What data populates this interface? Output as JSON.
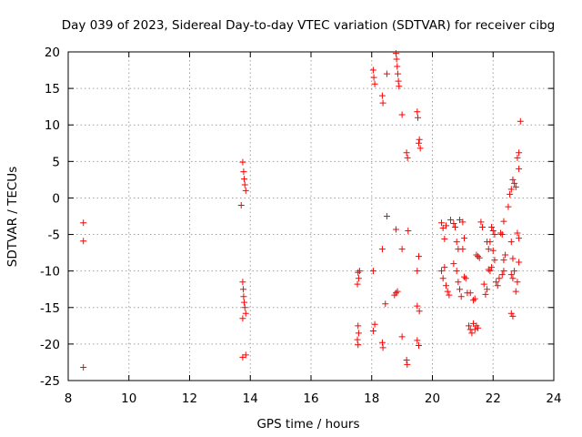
{
  "chart_data": {
    "type": "scatter",
    "title": "Day 039 of 2023, Sidereal Day-to-day VTEC variation (SDTVAR) for receiver cibg",
    "xlabel": "GPS time / hours",
    "ylabel": "SDTVAR / TECUs",
    "xlim": [
      8,
      24
    ],
    "ylim": [
      -25,
      20
    ],
    "xticks": [
      8,
      10,
      12,
      14,
      16,
      18,
      20,
      22,
      24
    ],
    "yticks": [
      -25,
      -20,
      -15,
      -10,
      -5,
      0,
      5,
      10,
      15,
      20
    ],
    "grid": true,
    "marker": "+",
    "color": "#ff0000",
    "series": [
      {
        "name": "SDTVAR",
        "points": [
          [
            8.5,
            -3.4
          ],
          [
            8.5,
            -5.9
          ],
          [
            8.5,
            -23.2
          ],
          [
            13.75,
            4.9
          ],
          [
            13.78,
            3.6
          ],
          [
            13.8,
            2.6
          ],
          [
            13.82,
            1.8
          ],
          [
            13.85,
            1.0
          ],
          [
            13.7,
            -1.0
          ],
          [
            13.75,
            -11.5
          ],
          [
            13.77,
            -12.5
          ],
          [
            13.78,
            -13.5
          ],
          [
            13.8,
            -14.3
          ],
          [
            13.82,
            -15.0
          ],
          [
            13.85,
            -15.8
          ],
          [
            13.75,
            -16.5
          ],
          [
            13.75,
            -21.8
          ],
          [
            13.85,
            -21.5
          ],
          [
            17.55,
            -10.2
          ],
          [
            17.57,
            -11.0
          ],
          [
            17.53,
            -11.8
          ],
          [
            17.6,
            -10.0
          ],
          [
            17.55,
            -17.5
          ],
          [
            17.57,
            -18.5
          ],
          [
            17.53,
            -19.4
          ],
          [
            17.55,
            -20.1
          ],
          [
            18.05,
            17.5
          ],
          [
            18.07,
            16.5
          ],
          [
            18.1,
            15.6
          ],
          [
            18.05,
            -10.0
          ],
          [
            18.1,
            -17.3
          ],
          [
            18.05,
            -18.2
          ],
          [
            18.35,
            14.0
          ],
          [
            18.37,
            13.0
          ],
          [
            18.5,
            17.0
          ],
          [
            18.35,
            -7.0
          ],
          [
            18.5,
            -2.5
          ],
          [
            18.45,
            -14.5
          ],
          [
            18.35,
            -19.8
          ],
          [
            18.37,
            -20.5
          ],
          [
            18.8,
            19.8
          ],
          [
            18.82,
            19.0
          ],
          [
            18.84,
            18.0
          ],
          [
            18.86,
            17.0
          ],
          [
            18.88,
            16.0
          ],
          [
            18.9,
            15.3
          ],
          [
            18.8,
            -4.3
          ],
          [
            18.8,
            -13.0
          ],
          [
            18.85,
            -12.8
          ],
          [
            18.75,
            -13.3
          ],
          [
            19.0,
            11.4
          ],
          [
            19.0,
            -7.0
          ],
          [
            19.0,
            -19.0
          ],
          [
            19.15,
            6.2
          ],
          [
            19.18,
            5.5
          ],
          [
            19.2,
            -4.5
          ],
          [
            19.15,
            -22.2
          ],
          [
            19.17,
            -22.8
          ],
          [
            19.5,
            11.8
          ],
          [
            19.52,
            11.0
          ],
          [
            19.55,
            7.5
          ],
          [
            19.57,
            8.0
          ],
          [
            19.6,
            6.8
          ],
          [
            19.5,
            -10.0
          ],
          [
            19.55,
            -8.0
          ],
          [
            19.5,
            -14.8
          ],
          [
            19.57,
            -15.5
          ],
          [
            19.5,
            -19.5
          ],
          [
            19.55,
            -20.2
          ],
          [
            20.3,
            -3.4
          ],
          [
            20.35,
            -4.1
          ],
          [
            20.4,
            -5.6
          ],
          [
            20.45,
            -3.8
          ],
          [
            20.3,
            -10.0
          ],
          [
            20.35,
            -11.0
          ],
          [
            20.4,
            -9.5
          ],
          [
            20.45,
            -12.0
          ],
          [
            20.5,
            -12.8
          ],
          [
            20.55,
            -13.3
          ],
          [
            20.6,
            -3.0
          ],
          [
            20.7,
            -3.5
          ],
          [
            20.75,
            -4.0
          ],
          [
            20.8,
            -6.0
          ],
          [
            20.85,
            -7.0
          ],
          [
            20.7,
            -9.0
          ],
          [
            20.8,
            -10.0
          ],
          [
            20.85,
            -11.5
          ],
          [
            20.9,
            -12.5
          ],
          [
            20.95,
            -13.5
          ],
          [
            20.9,
            -3.0
          ],
          [
            21.0,
            -3.3
          ],
          [
            21.05,
            -5.5
          ],
          [
            21.0,
            -7.0
          ],
          [
            21.05,
            -10.8
          ],
          [
            21.1,
            -11.0
          ],
          [
            21.15,
            -13.0
          ],
          [
            21.25,
            -13.0
          ],
          [
            21.2,
            -17.5
          ],
          [
            21.25,
            -18.0
          ],
          [
            21.3,
            -18.5
          ],
          [
            21.35,
            -17.2
          ],
          [
            21.4,
            -18.0
          ],
          [
            21.45,
            -17.5
          ],
          [
            21.5,
            -17.8
          ],
          [
            21.35,
            -14.0
          ],
          [
            21.4,
            -13.8
          ],
          [
            21.45,
            -7.8
          ],
          [
            21.5,
            -8.0
          ],
          [
            21.55,
            -8.2
          ],
          [
            21.6,
            -3.3
          ],
          [
            21.65,
            -4.0
          ],
          [
            21.7,
            -11.8
          ],
          [
            21.75,
            -13.2
          ],
          [
            21.8,
            -12.5
          ],
          [
            21.8,
            -6.0
          ],
          [
            21.85,
            -7.0
          ],
          [
            21.9,
            -6.0
          ],
          [
            21.85,
            -9.8
          ],
          [
            21.9,
            -10.0
          ],
          [
            21.95,
            -9.5
          ],
          [
            21.95,
            -4.0
          ],
          [
            22.0,
            -4.5
          ],
          [
            22.05,
            -5.0
          ],
          [
            22.0,
            -7.2
          ],
          [
            22.05,
            -8.5
          ],
          [
            22.1,
            -11.5
          ],
          [
            22.15,
            -12.0
          ],
          [
            22.2,
            -11.0
          ],
          [
            22.25,
            -4.8
          ],
          [
            22.3,
            -5.0
          ],
          [
            22.35,
            -3.2
          ],
          [
            22.35,
            -8.5
          ],
          [
            22.4,
            -7.8
          ],
          [
            22.3,
            -10.5
          ],
          [
            22.35,
            -10.0
          ],
          [
            22.5,
            -1.2
          ],
          [
            22.55,
            0.5
          ],
          [
            22.6,
            1.2
          ],
          [
            22.65,
            2.5
          ],
          [
            22.7,
            2.0
          ],
          [
            22.75,
            1.5
          ],
          [
            22.6,
            -6.0
          ],
          [
            22.65,
            -8.3
          ],
          [
            22.6,
            -10.5
          ],
          [
            22.65,
            -11.0
          ],
          [
            22.7,
            -10.0
          ],
          [
            22.6,
            -15.8
          ],
          [
            22.65,
            -16.2
          ],
          [
            22.8,
            -4.8
          ],
          [
            22.85,
            -5.5
          ],
          [
            22.85,
            -8.8
          ],
          [
            22.8,
            -11.5
          ],
          [
            22.75,
            -12.8
          ],
          [
            22.85,
            4.0
          ],
          [
            22.85,
            6.2
          ],
          [
            22.8,
            5.5
          ],
          [
            22.9,
            10.5
          ]
        ]
      }
    ]
  }
}
